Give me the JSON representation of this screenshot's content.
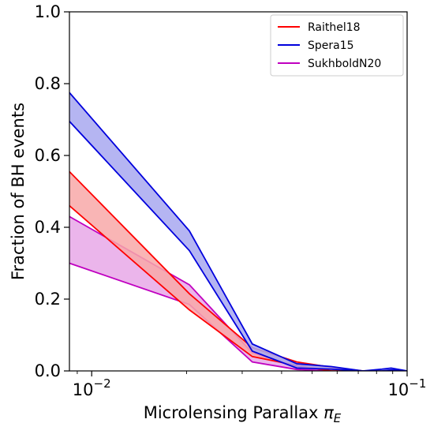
{
  "chart_data": {
    "type": "area",
    "xlabel_text": "Microlensing Parallax ",
    "xlabel_symbol": "π",
    "xlabel_subscript": "E",
    "ylabel": "Fraction of BH events",
    "x_scale": "log",
    "xlim": [
      0.0085,
      0.1
    ],
    "ylim": [
      0.0,
      1.0
    ],
    "grid": false,
    "legend_position": "top-right",
    "x_ticks": [
      {
        "value": 0.01,
        "base": "10",
        "exp": "−2"
      },
      {
        "value": 0.1,
        "base": "10",
        "exp": "−1"
      }
    ],
    "y_ticks": [
      {
        "value": 0.0,
        "label": "0.0"
      },
      {
        "value": 0.2,
        "label": "0.2"
      },
      {
        "value": 0.4,
        "label": "0.4"
      },
      {
        "value": 0.6,
        "label": "0.6"
      },
      {
        "value": 0.8,
        "label": "0.8"
      },
      {
        "value": 1.0,
        "label": "1.0"
      }
    ],
    "series": [
      {
        "name": "SukhboldN20",
        "line_color": "#c000c0",
        "fill_color": "#e8a8e8",
        "x": [
          0.0085,
          0.0204,
          0.0323,
          0.0447,
          0.0575,
          0.0724,
          0.0832,
          0.089,
          0.1
        ],
        "upper": [
          0.43,
          0.24,
          0.05,
          0.012,
          0.005,
          0.0,
          0.0,
          0.0,
          0.0
        ],
        "lower": [
          0.3,
          0.185,
          0.025,
          0.004,
          0.0,
          0.0,
          0.0,
          0.0,
          0.0
        ]
      },
      {
        "name": "Raithel18",
        "line_color": "#ff0000",
        "fill_color": "#f8a8a8",
        "x": [
          0.0085,
          0.0204,
          0.0323,
          0.0447,
          0.0575,
          0.0724,
          0.0832,
          0.089,
          0.1
        ],
        "upper": [
          0.555,
          0.215,
          0.065,
          0.025,
          0.01,
          0.0,
          0.0,
          0.0,
          0.0
        ],
        "lower": [
          0.46,
          0.17,
          0.04,
          0.015,
          0.0,
          0.0,
          0.0,
          0.0,
          0.0
        ]
      },
      {
        "name": "Spera15",
        "line_color": "#0000dd",
        "fill_color": "#a8a8f0",
        "x": [
          0.0085,
          0.0204,
          0.0323,
          0.0447,
          0.0575,
          0.0724,
          0.0832,
          0.089,
          0.1
        ],
        "upper": [
          0.775,
          0.39,
          0.075,
          0.02,
          0.012,
          0.0,
          0.005,
          0.008,
          0.0
        ],
        "lower": [
          0.695,
          0.335,
          0.055,
          0.008,
          0.005,
          0.0,
          0.0,
          0.003,
          0.0
        ]
      }
    ],
    "legend_order": [
      "Raithel18",
      "Spera15",
      "SukhboldN20"
    ]
  }
}
